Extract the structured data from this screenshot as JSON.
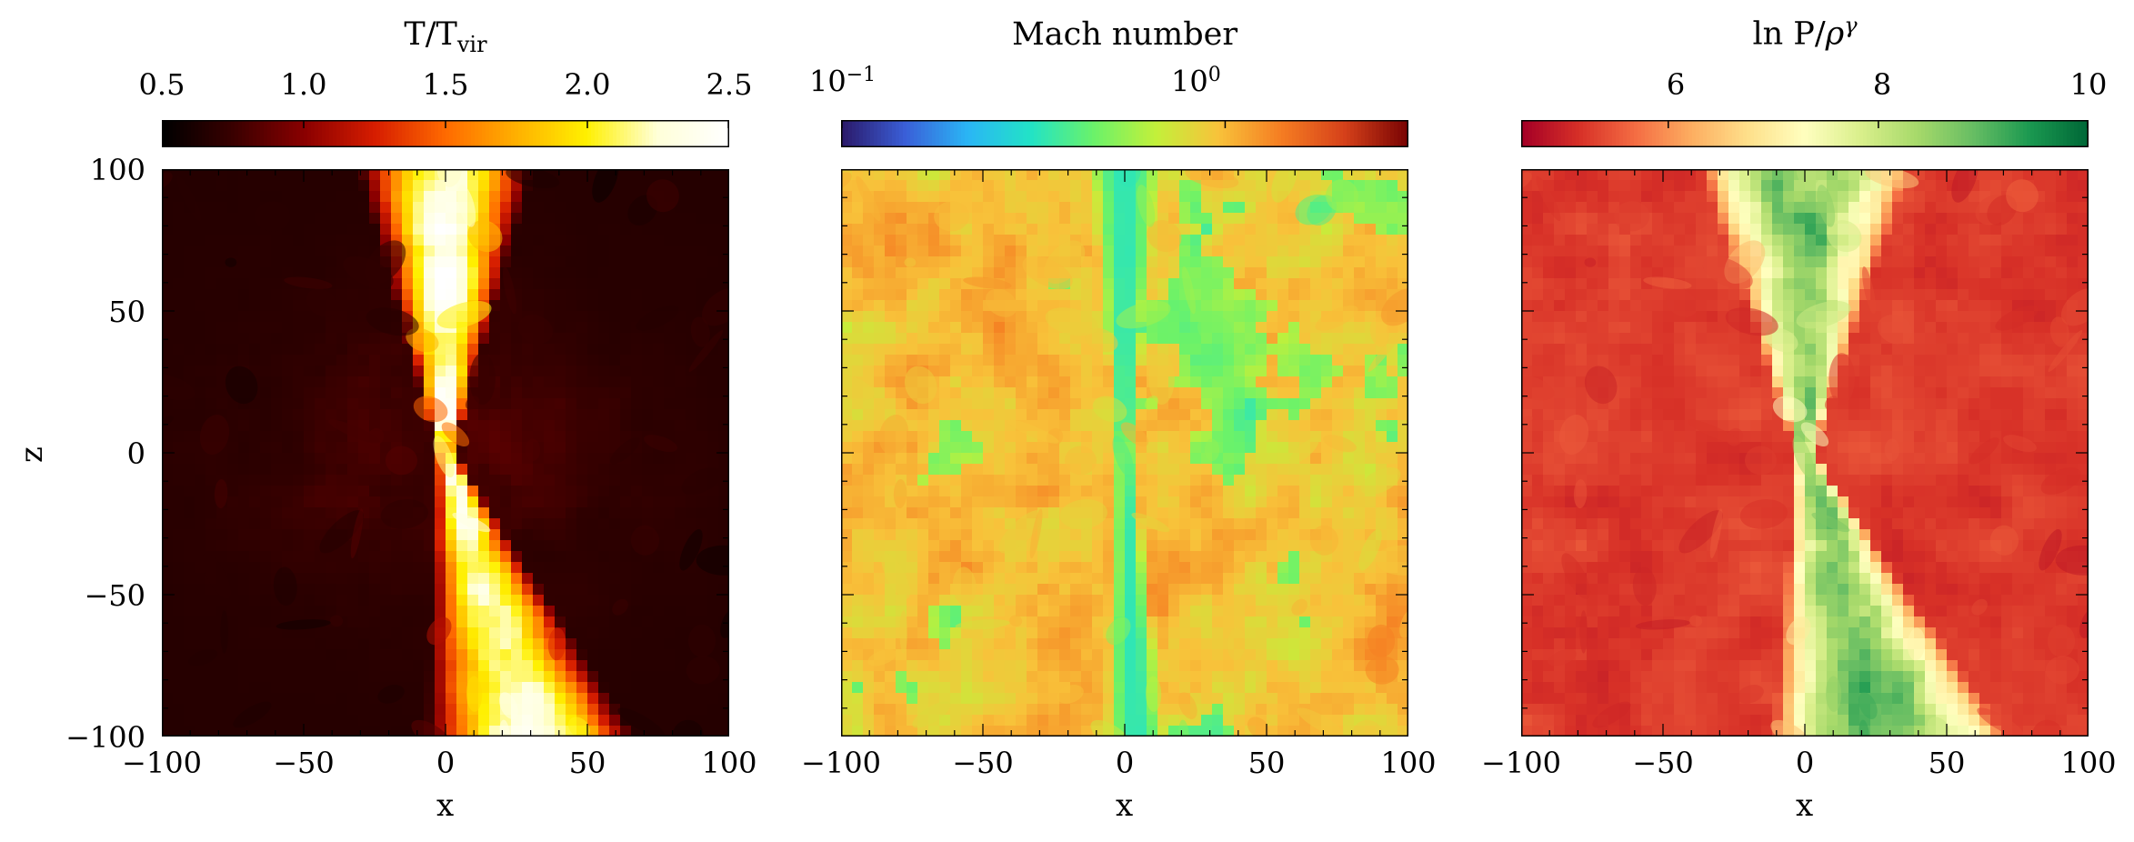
{
  "chart_data": [
    {
      "type": "heatmap",
      "title_base": "T/T",
      "title_sub": "vir",
      "colorbar": {
        "scale": "linear",
        "range": [
          0.5,
          2.5
        ],
        "ticks": [
          "0.5",
          "1.0",
          "1.5",
          "2.0",
          "2.5"
        ],
        "tick_values": [
          0.5,
          1.0,
          1.5,
          2.0,
          2.5
        ],
        "colormap": [
          "#000000",
          "#3a0000",
          "#8a0000",
          "#d61d00",
          "#ff6a00",
          "#ffb000",
          "#fff000",
          "#ffffd8",
          "#ffffff"
        ]
      },
      "xlabel": "x",
      "ylabel": "z",
      "xlim": [
        -100,
        100
      ],
      "ylim": [
        -100,
        100
      ],
      "xticks": [
        "−100",
        "−50",
        "0",
        "50",
        "100"
      ],
      "yticks": [
        "100",
        "50",
        "0",
        "−50",
        "−100"
      ],
      "field": {
        "background_level": 0.08,
        "jet_level": 0.72,
        "jet_upper_halfwidth_at_top": 28,
        "jet_lower_center_at_bottom": 30,
        "jet_lower_halfwidth_at_bottom": 34
      }
    },
    {
      "type": "heatmap",
      "title": "Mach number",
      "colorbar": {
        "scale": "log",
        "range": [
          0.1,
          3.0
        ],
        "ticks": [
          "10",
          "10"
        ],
        "tick_superscripts": [
          "−1",
          "0"
        ],
        "tick_values": [
          0.1,
          1.0
        ],
        "colormap": [
          "#2b1a6b",
          "#3a5fd8",
          "#2ab6f5",
          "#22e3c6",
          "#6af26a",
          "#c3f03a",
          "#f8c23a",
          "#f57d22",
          "#d6411a",
          "#7a0403"
        ]
      },
      "xlabel": "x",
      "xlim": [
        -100,
        100
      ],
      "ylim": [
        -100,
        100
      ],
      "xticks": [
        "−100",
        "−50",
        "0",
        "50",
        "100"
      ],
      "field": {
        "background_level": 0.66,
        "jet_level": 0.32
      }
    },
    {
      "type": "heatmap",
      "title_base": "ln P/",
      "title_greek": "ρ",
      "title_sup": "γ",
      "colorbar": {
        "scale": "linear",
        "range": [
          4.6,
          10
        ],
        "ticks": [
          "6",
          "8",
          "10"
        ],
        "tick_values": [
          6,
          8,
          10
        ],
        "colormap": [
          "#a50026",
          "#d73027",
          "#f46d43",
          "#fdae61",
          "#fee08b",
          "#ffffbf",
          "#d9ef8b",
          "#a6d96a",
          "#66bd63",
          "#1a9850",
          "#006837"
        ]
      },
      "xlabel": "x",
      "xlim": [
        -100,
        100
      ],
      "ylim": [
        -100,
        100
      ],
      "xticks": [
        "−100",
        "−50",
        "0",
        "50",
        "100"
      ],
      "field": {
        "background_level": 0.12,
        "jet_level": 0.85
      }
    }
  ]
}
